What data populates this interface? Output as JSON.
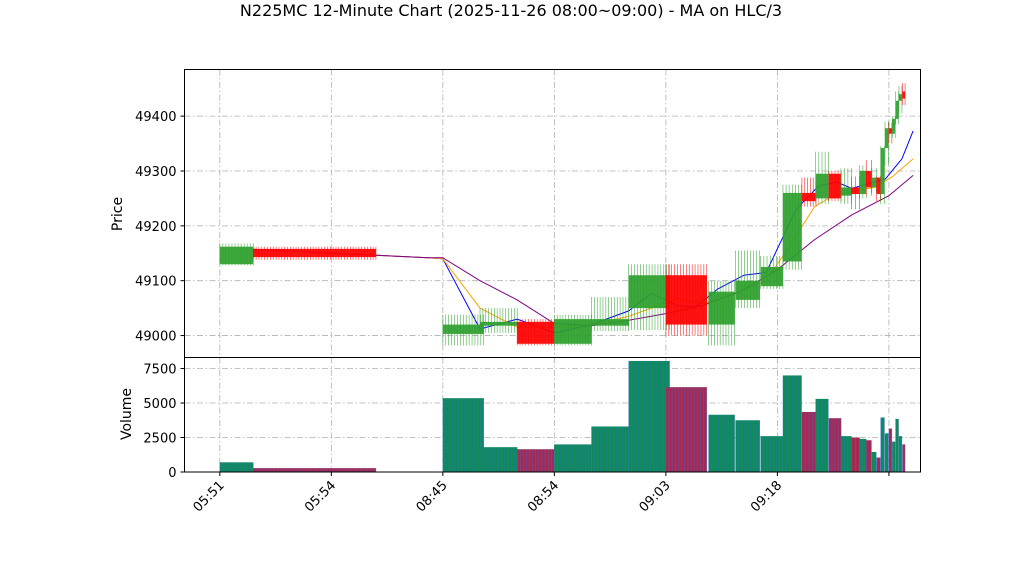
{
  "chart_data": {
    "type": "candlestick",
    "title": "N225MC 12-Minute Chart (2025-11-26 08:00~09:00) - MA on HLC/3",
    "price_panel": {
      "ylabel": "Price",
      "yticks": [
        49000,
        49100,
        49200,
        49300,
        49400
      ],
      "ylim": [
        48960,
        49485
      ],
      "grid": true
    },
    "volume_panel": {
      "ylabel": "Volume",
      "yticks": [
        0,
        2500,
        5000,
        7500
      ],
      "ylim": [
        0,
        8300
      ],
      "grid": true
    },
    "xticks": [
      {
        "label": "05:51",
        "x": 0
      },
      {
        "label": "05:54",
        "x": 3
      },
      {
        "label": "08:45",
        "x": 6
      },
      {
        "label": "08:54",
        "x": 9
      },
      {
        "label": "09:03",
        "x": 12
      },
      {
        "label": "09:18",
        "x": 15
      },
      {
        "label": "",
        "x": 18
      }
    ],
    "xlim": [
      -0.95,
      18.85
    ],
    "colors": {
      "up": "#2ca02c",
      "down": "#ff0000",
      "ma_fast": "#0000ff",
      "ma_mid": "#ffa500",
      "ma_slow": "#800080"
    },
    "candles": [
      {
        "x": 0.45,
        "w": 0.9,
        "o": 49130,
        "h": 49168,
        "l": 49128,
        "c": 49162
      },
      {
        "x": 2.55,
        "w": 3.3,
        "o": 49158,
        "h": 49162,
        "l": 49138,
        "c": 49143
      },
      {
        "x": 6.55,
        "w": 1.1,
        "o": 49003,
        "h": 49038,
        "l": 48982,
        "c": 49020
      },
      {
        "x": 7.5,
        "w": 1.0,
        "o": 49018,
        "h": 49050,
        "l": 49005,
        "c": 49025
      },
      {
        "x": 8.5,
        "w": 1.0,
        "o": 49025,
        "h": 49030,
        "l": 48982,
        "c": 48985
      },
      {
        "x": 9.5,
        "w": 1.0,
        "o": 48985,
        "h": 49038,
        "l": 48982,
        "c": 49030
      },
      {
        "x": 10.5,
        "w": 1.0,
        "o": 49018,
        "h": 49070,
        "l": 49008,
        "c": 49030
      },
      {
        "x": 11.55,
        "w": 1.1,
        "o": 49050,
        "h": 49130,
        "l": 49010,
        "c": 49110
      },
      {
        "x": 12.55,
        "w": 1.1,
        "o": 49110,
        "h": 49130,
        "l": 49000,
        "c": 49020
      },
      {
        "x": 13.5,
        "w": 0.7,
        "o": 49020,
        "h": 49100,
        "l": 48982,
        "c": 49080
      },
      {
        "x": 14.2,
        "w": 0.65,
        "o": 49065,
        "h": 49155,
        "l": 49050,
        "c": 49100
      },
      {
        "x": 14.85,
        "w": 0.6,
        "o": 49090,
        "h": 49145,
        "l": 49085,
        "c": 49125
      },
      {
        "x": 15.4,
        "w": 0.5,
        "o": 49135,
        "h": 49275,
        "l": 49120,
        "c": 49260
      },
      {
        "x": 15.85,
        "w": 0.38,
        "o": 49260,
        "h": 49288,
        "l": 49235,
        "c": 49245
      },
      {
        "x": 16.2,
        "w": 0.34,
        "o": 49250,
        "h": 49335,
        "l": 49240,
        "c": 49295
      },
      {
        "x": 16.55,
        "w": 0.33,
        "o": 49295,
        "h": 49300,
        "l": 49245,
        "c": 49250
      },
      {
        "x": 16.85,
        "w": 0.28,
        "o": 49255,
        "h": 49305,
        "l": 49240,
        "c": 49270
      },
      {
        "x": 17.1,
        "w": 0.22,
        "o": 49270,
        "h": 49290,
        "l": 49230,
        "c": 49258
      },
      {
        "x": 17.3,
        "w": 0.18,
        "o": 49258,
        "h": 49310,
        "l": 49250,
        "c": 49300
      },
      {
        "x": 17.46,
        "w": 0.14,
        "o": 49300,
        "h": 49320,
        "l": 49255,
        "c": 49270
      },
      {
        "x": 17.6,
        "w": 0.12,
        "o": 49270,
        "h": 49305,
        "l": 49260,
        "c": 49288
      },
      {
        "x": 17.72,
        "w": 0.1,
        "o": 49288,
        "h": 49290,
        "l": 49245,
        "c": 49258
      },
      {
        "x": 17.83,
        "w": 0.1,
        "o": 49258,
        "h": 49345,
        "l": 49240,
        "c": 49342
      },
      {
        "x": 17.94,
        "w": 0.09,
        "o": 49342,
        "h": 49390,
        "l": 49310,
        "c": 49378
      },
      {
        "x": 18.04,
        "w": 0.08,
        "o": 49378,
        "h": 49388,
        "l": 49350,
        "c": 49368
      },
      {
        "x": 18.13,
        "w": 0.08,
        "o": 49368,
        "h": 49400,
        "l": 49360,
        "c": 49395
      },
      {
        "x": 18.22,
        "w": 0.08,
        "o": 49395,
        "h": 49445,
        "l": 49385,
        "c": 49428
      },
      {
        "x": 18.31,
        "w": 0.08,
        "o": 49428,
        "h": 49455,
        "l": 49405,
        "c": 49440
      },
      {
        "x": 18.4,
        "w": 0.07,
        "o": 49445,
        "h": 49460,
        "l": 49420,
        "c": 49432
      }
    ],
    "volume": [
      {
        "x": 0.45,
        "w": 0.9,
        "v": 700,
        "dir": "up"
      },
      {
        "x": 2.55,
        "w": 3.3,
        "v": 280,
        "dir": "down"
      },
      {
        "x": 6.55,
        "w": 1.1,
        "v": 5350,
        "dir": "up"
      },
      {
        "x": 7.5,
        "w": 1.0,
        "v": 1800,
        "dir": "up"
      },
      {
        "x": 8.5,
        "w": 1.0,
        "v": 1650,
        "dir": "down"
      },
      {
        "x": 9.5,
        "w": 1.0,
        "v": 2000,
        "dir": "up"
      },
      {
        "x": 10.5,
        "w": 1.0,
        "v": 3300,
        "dir": "up"
      },
      {
        "x": 11.55,
        "w": 1.1,
        "v": 8050,
        "dir": "up"
      },
      {
        "x": 12.55,
        "w": 1.1,
        "v": 6150,
        "dir": "down"
      },
      {
        "x": 13.5,
        "w": 0.7,
        "v": 4150,
        "dir": "up"
      },
      {
        "x": 14.2,
        "w": 0.65,
        "v": 3750,
        "dir": "up"
      },
      {
        "x": 14.85,
        "w": 0.6,
        "v": 2600,
        "dir": "up"
      },
      {
        "x": 15.4,
        "w": 0.5,
        "v": 7000,
        "dir": "up"
      },
      {
        "x": 15.85,
        "w": 0.38,
        "v": 4350,
        "dir": "down"
      },
      {
        "x": 16.2,
        "w": 0.34,
        "v": 5300,
        "dir": "up"
      },
      {
        "x": 16.55,
        "w": 0.33,
        "v": 3900,
        "dir": "down"
      },
      {
        "x": 16.85,
        "w": 0.28,
        "v": 2600,
        "dir": "up"
      },
      {
        "x": 17.1,
        "w": 0.22,
        "v": 2500,
        "dir": "down"
      },
      {
        "x": 17.3,
        "w": 0.18,
        "v": 2400,
        "dir": "up"
      },
      {
        "x": 17.46,
        "w": 0.14,
        "v": 2300,
        "dir": "down"
      },
      {
        "x": 17.6,
        "w": 0.12,
        "v": 1450,
        "dir": "up"
      },
      {
        "x": 17.72,
        "w": 0.1,
        "v": 1050,
        "dir": "down"
      },
      {
        "x": 17.83,
        "w": 0.1,
        "v": 3950,
        "dir": "up"
      },
      {
        "x": 17.94,
        "w": 0.09,
        "v": 2800,
        "dir": "up"
      },
      {
        "x": 18.04,
        "w": 0.08,
        "v": 3150,
        "dir": "down"
      },
      {
        "x": 18.13,
        "w": 0.08,
        "v": 2200,
        "dir": "up"
      },
      {
        "x": 18.22,
        "w": 0.08,
        "v": 3850,
        "dir": "up"
      },
      {
        "x": 18.31,
        "w": 0.08,
        "v": 2600,
        "dir": "up"
      },
      {
        "x": 18.4,
        "w": 0.07,
        "v": 2000,
        "dir": "down"
      }
    ],
    "moving_averages": [
      {
        "color": "#0000ff",
        "points": [
          [
            0.9,
            49157
          ],
          [
            5.6,
            49142
          ],
          [
            6.0,
            49140
          ],
          [
            7.0,
            49012
          ],
          [
            8.0,
            49030
          ],
          [
            9.0,
            49005
          ],
          [
            10.0,
            49020
          ],
          [
            11.0,
            49045
          ],
          [
            11.6,
            49077
          ],
          [
            12.3,
            49055
          ],
          [
            12.8,
            49052
          ],
          [
            13.4,
            49085
          ],
          [
            14.1,
            49110
          ],
          [
            14.7,
            49115
          ],
          [
            15.5,
            49230
          ],
          [
            16.1,
            49272
          ],
          [
            16.6,
            49280
          ],
          [
            17.0,
            49268
          ],
          [
            17.5,
            49278
          ],
          [
            17.9,
            49285
          ],
          [
            18.35,
            49322
          ],
          [
            18.65,
            49373
          ]
        ]
      },
      {
        "color": "#ffa500",
        "points": [
          [
            0.9,
            49157
          ],
          [
            5.6,
            49142
          ],
          [
            6.0,
            49140
          ],
          [
            7.0,
            49050
          ],
          [
            8.0,
            49015
          ],
          [
            9.0,
            49015
          ],
          [
            10.0,
            49020
          ],
          [
            11.0,
            49035
          ],
          [
            11.6,
            49050
          ],
          [
            12.3,
            49068
          ],
          [
            13.0,
            49058
          ],
          [
            13.8,
            49075
          ],
          [
            14.7,
            49100
          ],
          [
            15.3,
            49160
          ],
          [
            16.0,
            49235
          ],
          [
            16.5,
            49255
          ],
          [
            17.0,
            49262
          ],
          [
            17.6,
            49270
          ],
          [
            18.1,
            49290
          ],
          [
            18.65,
            49322
          ]
        ]
      },
      {
        "color": "#800080",
        "points": [
          [
            0.9,
            49157
          ],
          [
            5.6,
            49142
          ],
          [
            6.0,
            49142
          ],
          [
            7.0,
            49100
          ],
          [
            8.0,
            49065
          ],
          [
            9.0,
            49022
          ],
          [
            10.0,
            49018
          ],
          [
            11.0,
            49028
          ],
          [
            12.0,
            49040
          ],
          [
            13.0,
            49055
          ],
          [
            14.0,
            49080
          ],
          [
            15.0,
            49120
          ],
          [
            16.0,
            49175
          ],
          [
            17.0,
            49220
          ],
          [
            18.0,
            49255
          ],
          [
            18.65,
            49292
          ]
        ]
      }
    ]
  }
}
